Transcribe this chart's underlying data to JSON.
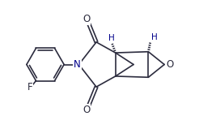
{
  "bg_color": "#ffffff",
  "line_color": "#2c2c3e",
  "atom_color_N": "#00008B",
  "atom_color_O": "#2c2c3e",
  "atom_color_F": "#2c2c3e",
  "atom_color_H": "#00008B",
  "figsize": [
    2.67,
    1.59
  ],
  "dpi": 100,
  "xlim": [
    0,
    10
  ],
  "ylim": [
    0,
    6
  ]
}
